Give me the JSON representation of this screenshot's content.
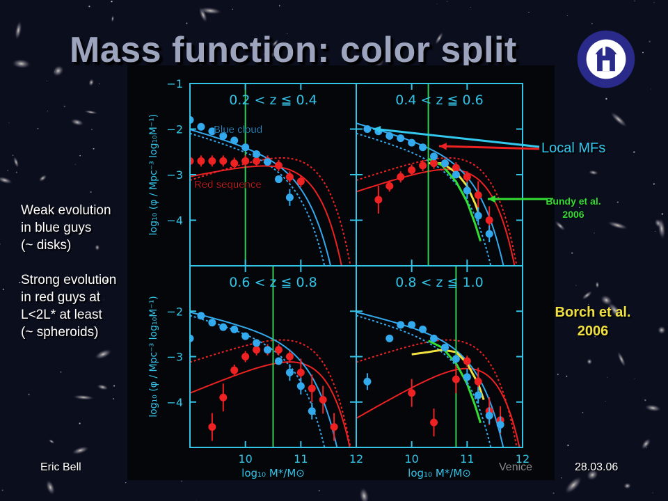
{
  "slide": {
    "title": "Mass function: color split",
    "footer_left": "Eric Bell",
    "footer_center": "Venice",
    "footer_right": "28.03.06"
  },
  "annotations": {
    "left_text_1": [
      "Weak evolution",
      "in blue guys",
      "(~ disks)"
    ],
    "left_text_2": [
      "Strong evolution",
      "in red guys at",
      "L<2L* at least",
      "(~ spheroids)"
    ],
    "local_mfs": "Local MFs",
    "bundy": [
      "Bundy et al.",
      "2006"
    ],
    "borch": [
      "Borch et al.",
      "2006"
    ]
  },
  "colors": {
    "background": "#0b0e1c",
    "plot_bg": "#05060a",
    "axes": "#33c4e8",
    "blue": "#33aaee",
    "red": "#ee2222",
    "green_line": "#33cc55",
    "bundy": "#33dd33",
    "borch": "#f0e040",
    "local_arrow": "#33c8ee"
  },
  "chart_data": {
    "type": "scatter",
    "xlabel": "log₁₀ M*/M⊙",
    "ylabel": "log₁₀ (φ / Mpc⁻³ log₁₀M⁻¹)",
    "xlim": [
      9.0,
      12.0
    ],
    "ylim": [
      -5.0,
      -1.0
    ],
    "x_ticks": [
      10,
      11,
      12
    ],
    "y_ticks": [
      -1,
      -2,
      -3,
      -4
    ],
    "legend_labels": {
      "blue": "Blue cloud",
      "red": "Red sequence"
    },
    "panels": [
      {
        "label": "0.2 < z ≦ 0.4",
        "vline_x": 10.0,
        "blue_points": [
          {
            "x": 9.0,
            "y": -1.8
          },
          {
            "x": 9.2,
            "y": -1.95
          },
          {
            "x": 9.4,
            "y": -2.05
          },
          {
            "x": 9.6,
            "y": -2.15
          },
          {
            "x": 9.8,
            "y": -2.25
          },
          {
            "x": 10.0,
            "y": -2.4
          },
          {
            "x": 10.2,
            "y": -2.55
          },
          {
            "x": 10.4,
            "y": -2.72
          },
          {
            "x": 10.6,
            "y": -3.1
          },
          {
            "x": 10.8,
            "y": -3.5
          }
        ],
        "red_points": [
          {
            "x": 9.0,
            "y": -2.7
          },
          {
            "x": 9.2,
            "y": -2.7
          },
          {
            "x": 9.4,
            "y": -2.7
          },
          {
            "x": 9.6,
            "y": -2.7
          },
          {
            "x": 9.8,
            "y": -2.75
          },
          {
            "x": 10.0,
            "y": -2.7
          },
          {
            "x": 10.2,
            "y": -2.7
          },
          {
            "x": 10.4,
            "y": -2.7
          },
          {
            "x": 10.6,
            "y": -2.8
          },
          {
            "x": 10.8,
            "y": -3.05
          },
          {
            "x": 11.0,
            "y": -3.15
          }
        ]
      },
      {
        "label": "0.4 < z ≦ 0.6",
        "vline_x": 10.3,
        "blue_points": [
          {
            "x": 9.2,
            "y": -2.0
          },
          {
            "x": 9.4,
            "y": -2.05
          },
          {
            "x": 9.6,
            "y": -2.15
          },
          {
            "x": 9.8,
            "y": -2.2
          },
          {
            "x": 10.0,
            "y": -2.3
          },
          {
            "x": 10.2,
            "y": -2.4
          },
          {
            "x": 10.4,
            "y": -2.6
          },
          {
            "x": 10.6,
            "y": -2.75
          },
          {
            "x": 10.8,
            "y": -3.0
          },
          {
            "x": 11.0,
            "y": -3.35
          },
          {
            "x": 11.2,
            "y": -3.9
          },
          {
            "x": 11.4,
            "y": -4.3
          }
        ],
        "red_points": [
          {
            "x": 9.4,
            "y": -3.55
          },
          {
            "x": 9.6,
            "y": -3.25
          },
          {
            "x": 9.8,
            "y": -3.05
          },
          {
            "x": 10.0,
            "y": -2.9
          },
          {
            "x": 10.2,
            "y": -2.8
          },
          {
            "x": 10.4,
            "y": -2.75
          },
          {
            "x": 10.6,
            "y": -2.75
          },
          {
            "x": 10.8,
            "y": -2.85
          },
          {
            "x": 11.0,
            "y": -3.05
          },
          {
            "x": 11.2,
            "y": -3.45
          },
          {
            "x": 11.4,
            "y": -4.0
          }
        ]
      },
      {
        "label": "0.6 < z ≦ 0.8",
        "vline_x": 10.5,
        "blue_points": [
          {
            "x": 9.0,
            "y": -2.6
          },
          {
            "x": 9.2,
            "y": -2.1
          },
          {
            "x": 9.4,
            "y": -2.25
          },
          {
            "x": 9.6,
            "y": -2.35
          },
          {
            "x": 9.8,
            "y": -2.4
          },
          {
            "x": 10.0,
            "y": -2.55
          },
          {
            "x": 10.2,
            "y": -2.7
          },
          {
            "x": 10.4,
            "y": -2.85
          },
          {
            "x": 10.6,
            "y": -3.1
          },
          {
            "x": 10.8,
            "y": -3.35
          },
          {
            "x": 11.0,
            "y": -3.65
          },
          {
            "x": 11.2,
            "y": -4.2
          }
        ],
        "red_points": [
          {
            "x": 9.4,
            "y": -4.55
          },
          {
            "x": 9.6,
            "y": -3.9
          },
          {
            "x": 9.8,
            "y": -3.3
          },
          {
            "x": 10.0,
            "y": -3.0
          },
          {
            "x": 10.2,
            "y": -2.85
          },
          {
            "x": 10.4,
            "y": -2.85
          },
          {
            "x": 10.6,
            "y": -2.85
          },
          {
            "x": 10.8,
            "y": -3.0
          },
          {
            "x": 11.0,
            "y": -3.35
          },
          {
            "x": 11.2,
            "y": -3.7
          },
          {
            "x": 11.4,
            "y": -3.95
          },
          {
            "x": 11.6,
            "y": -4.55
          }
        ]
      },
      {
        "label": "0.8 < z ≦ 1.0",
        "vline_x": 10.8,
        "blue_points": [
          {
            "x": 9.2,
            "y": -3.55
          },
          {
            "x": 9.6,
            "y": -2.6
          },
          {
            "x": 9.8,
            "y": -2.3
          },
          {
            "x": 10.0,
            "y": -2.3
          },
          {
            "x": 10.2,
            "y": -2.4
          },
          {
            "x": 10.4,
            "y": -2.6
          },
          {
            "x": 10.6,
            "y": -2.8
          },
          {
            "x": 10.8,
            "y": -3.05
          },
          {
            "x": 11.0,
            "y": -3.45
          },
          {
            "x": 11.2,
            "y": -3.85
          },
          {
            "x": 11.4,
            "y": -4.3
          },
          {
            "x": 11.6,
            "y": -4.5
          }
        ],
        "red_points": [
          {
            "x": 10.0,
            "y": -3.8
          },
          {
            "x": 10.4,
            "y": -4.45
          },
          {
            "x": 10.8,
            "y": -3.5
          },
          {
            "x": 11.0,
            "y": -3.1
          },
          {
            "x": 11.2,
            "y": -3.55
          },
          {
            "x": 11.4,
            "y": -4.2
          },
          {
            "x": 11.6,
            "y": -4.4
          }
        ]
      }
    ]
  }
}
